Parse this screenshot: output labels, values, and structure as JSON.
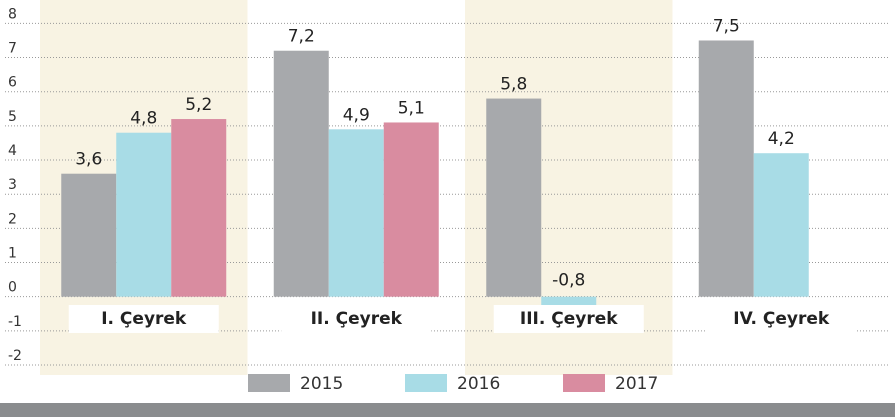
{
  "chart_data": {
    "type": "bar",
    "categories": [
      "I. Çeyrek",
      "II. Çeyrek",
      "III. Çeyrek",
      "IV. Çeyrek"
    ],
    "series": [
      {
        "name": "2015",
        "color": "#a7a9ac",
        "values": [
          3.6,
          7.2,
          5.8,
          7.5
        ],
        "value_labels": [
          "3,6",
          "7,2",
          "5,8",
          "7,5"
        ]
      },
      {
        "name": "2016",
        "color": "#a8dce6",
        "values": [
          4.8,
          4.9,
          -0.8,
          4.2
        ],
        "value_labels": [
          "4,8",
          "4,9",
          "-0,8",
          "4,2"
        ]
      },
      {
        "name": "2017",
        "color": "#d98ca0",
        "values": [
          5.2,
          5.1,
          null,
          null
        ],
        "value_labels": [
          "5,2",
          "5,1",
          null,
          null
        ]
      }
    ],
    "ylim": [
      -2,
      8
    ],
    "yticks": [
      -2,
      -1,
      0,
      1,
      2,
      3,
      4,
      5,
      6,
      7,
      8
    ],
    "grid": true,
    "legend": "bottom"
  }
}
